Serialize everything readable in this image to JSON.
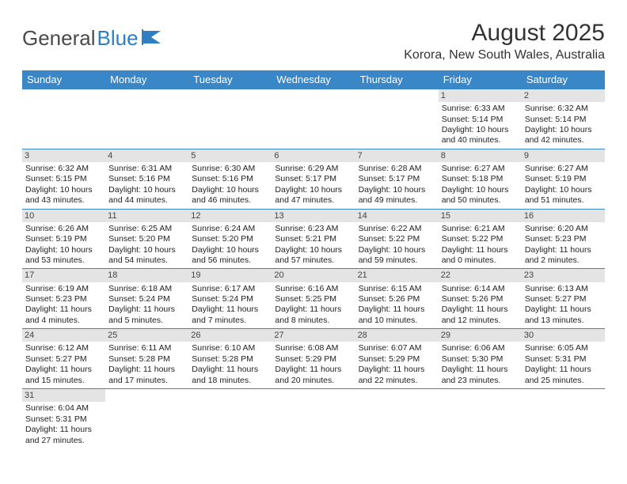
{
  "logo": {
    "text1": "General",
    "text2": "Blue"
  },
  "title": "August 2025",
  "location": "Korora, New South Wales, Australia",
  "colors": {
    "header_bg": "#3a87c8",
    "header_fg": "#ffffff",
    "daynum_bg": "#e4e4e4",
    "rule": "#3a87c8"
  },
  "day_names": [
    "Sunday",
    "Monday",
    "Tuesday",
    "Wednesday",
    "Thursday",
    "Friday",
    "Saturday"
  ],
  "weeks": [
    [
      null,
      null,
      null,
      null,
      null,
      {
        "n": "1",
        "sr": "Sunrise: 6:33 AM",
        "ss": "Sunset: 5:14 PM",
        "d1": "Daylight: 10 hours",
        "d2": "and 40 minutes."
      },
      {
        "n": "2",
        "sr": "Sunrise: 6:32 AM",
        "ss": "Sunset: 5:14 PM",
        "d1": "Daylight: 10 hours",
        "d2": "and 42 minutes."
      }
    ],
    [
      {
        "n": "3",
        "sr": "Sunrise: 6:32 AM",
        "ss": "Sunset: 5:15 PM",
        "d1": "Daylight: 10 hours",
        "d2": "and 43 minutes."
      },
      {
        "n": "4",
        "sr": "Sunrise: 6:31 AM",
        "ss": "Sunset: 5:16 PM",
        "d1": "Daylight: 10 hours",
        "d2": "and 44 minutes."
      },
      {
        "n": "5",
        "sr": "Sunrise: 6:30 AM",
        "ss": "Sunset: 5:16 PM",
        "d1": "Daylight: 10 hours",
        "d2": "and 46 minutes."
      },
      {
        "n": "6",
        "sr": "Sunrise: 6:29 AM",
        "ss": "Sunset: 5:17 PM",
        "d1": "Daylight: 10 hours",
        "d2": "and 47 minutes."
      },
      {
        "n": "7",
        "sr": "Sunrise: 6:28 AM",
        "ss": "Sunset: 5:17 PM",
        "d1": "Daylight: 10 hours",
        "d2": "and 49 minutes."
      },
      {
        "n": "8",
        "sr": "Sunrise: 6:27 AM",
        "ss": "Sunset: 5:18 PM",
        "d1": "Daylight: 10 hours",
        "d2": "and 50 minutes."
      },
      {
        "n": "9",
        "sr": "Sunrise: 6:27 AM",
        "ss": "Sunset: 5:19 PM",
        "d1": "Daylight: 10 hours",
        "d2": "and 51 minutes."
      }
    ],
    [
      {
        "n": "10",
        "sr": "Sunrise: 6:26 AM",
        "ss": "Sunset: 5:19 PM",
        "d1": "Daylight: 10 hours",
        "d2": "and 53 minutes."
      },
      {
        "n": "11",
        "sr": "Sunrise: 6:25 AM",
        "ss": "Sunset: 5:20 PM",
        "d1": "Daylight: 10 hours",
        "d2": "and 54 minutes."
      },
      {
        "n": "12",
        "sr": "Sunrise: 6:24 AM",
        "ss": "Sunset: 5:20 PM",
        "d1": "Daylight: 10 hours",
        "d2": "and 56 minutes."
      },
      {
        "n": "13",
        "sr": "Sunrise: 6:23 AM",
        "ss": "Sunset: 5:21 PM",
        "d1": "Daylight: 10 hours",
        "d2": "and 57 minutes."
      },
      {
        "n": "14",
        "sr": "Sunrise: 6:22 AM",
        "ss": "Sunset: 5:22 PM",
        "d1": "Daylight: 10 hours",
        "d2": "and 59 minutes."
      },
      {
        "n": "15",
        "sr": "Sunrise: 6:21 AM",
        "ss": "Sunset: 5:22 PM",
        "d1": "Daylight: 11 hours",
        "d2": "and 0 minutes."
      },
      {
        "n": "16",
        "sr": "Sunrise: 6:20 AM",
        "ss": "Sunset: 5:23 PM",
        "d1": "Daylight: 11 hours",
        "d2": "and 2 minutes."
      }
    ],
    [
      {
        "n": "17",
        "sr": "Sunrise: 6:19 AM",
        "ss": "Sunset: 5:23 PM",
        "d1": "Daylight: 11 hours",
        "d2": "and 4 minutes."
      },
      {
        "n": "18",
        "sr": "Sunrise: 6:18 AM",
        "ss": "Sunset: 5:24 PM",
        "d1": "Daylight: 11 hours",
        "d2": "and 5 minutes."
      },
      {
        "n": "19",
        "sr": "Sunrise: 6:17 AM",
        "ss": "Sunset: 5:24 PM",
        "d1": "Daylight: 11 hours",
        "d2": "and 7 minutes."
      },
      {
        "n": "20",
        "sr": "Sunrise: 6:16 AM",
        "ss": "Sunset: 5:25 PM",
        "d1": "Daylight: 11 hours",
        "d2": "and 8 minutes."
      },
      {
        "n": "21",
        "sr": "Sunrise: 6:15 AM",
        "ss": "Sunset: 5:26 PM",
        "d1": "Daylight: 11 hours",
        "d2": "and 10 minutes."
      },
      {
        "n": "22",
        "sr": "Sunrise: 6:14 AM",
        "ss": "Sunset: 5:26 PM",
        "d1": "Daylight: 11 hours",
        "d2": "and 12 minutes."
      },
      {
        "n": "23",
        "sr": "Sunrise: 6:13 AM",
        "ss": "Sunset: 5:27 PM",
        "d1": "Daylight: 11 hours",
        "d2": "and 13 minutes."
      }
    ],
    [
      {
        "n": "24",
        "sr": "Sunrise: 6:12 AM",
        "ss": "Sunset: 5:27 PM",
        "d1": "Daylight: 11 hours",
        "d2": "and 15 minutes."
      },
      {
        "n": "25",
        "sr": "Sunrise: 6:11 AM",
        "ss": "Sunset: 5:28 PM",
        "d1": "Daylight: 11 hours",
        "d2": "and 17 minutes."
      },
      {
        "n": "26",
        "sr": "Sunrise: 6:10 AM",
        "ss": "Sunset: 5:28 PM",
        "d1": "Daylight: 11 hours",
        "d2": "and 18 minutes."
      },
      {
        "n": "27",
        "sr": "Sunrise: 6:08 AM",
        "ss": "Sunset: 5:29 PM",
        "d1": "Daylight: 11 hours",
        "d2": "and 20 minutes."
      },
      {
        "n": "28",
        "sr": "Sunrise: 6:07 AM",
        "ss": "Sunset: 5:29 PM",
        "d1": "Daylight: 11 hours",
        "d2": "and 22 minutes."
      },
      {
        "n": "29",
        "sr": "Sunrise: 6:06 AM",
        "ss": "Sunset: 5:30 PM",
        "d1": "Daylight: 11 hours",
        "d2": "and 23 minutes."
      },
      {
        "n": "30",
        "sr": "Sunrise: 6:05 AM",
        "ss": "Sunset: 5:31 PM",
        "d1": "Daylight: 11 hours",
        "d2": "and 25 minutes."
      }
    ],
    [
      {
        "n": "31",
        "sr": "Sunrise: 6:04 AM",
        "ss": "Sunset: 5:31 PM",
        "d1": "Daylight: 11 hours",
        "d2": "and 27 minutes."
      },
      null,
      null,
      null,
      null,
      null,
      null
    ]
  ]
}
